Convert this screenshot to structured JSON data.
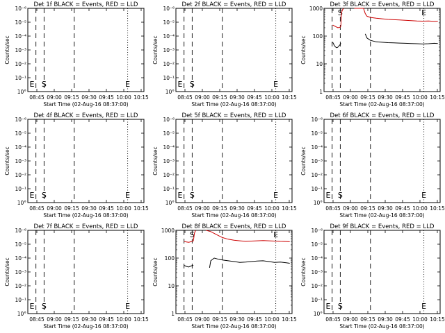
{
  "chart_data": [
    {
      "type": "line",
      "title": "Det 1f BLACK = Events, RED = LLD",
      "xlabel": "Start Time (02-Aug-16 08:37:00)",
      "ylabel": "Counts/sec",
      "xticks": [
        "08:45",
        "09:00",
        "09:15",
        "09:30",
        "09:45",
        "10:00",
        "10:15"
      ],
      "xlim": [
        0,
        100
      ],
      "yscale": "log",
      "yticks": [
        "10°",
        "10⁻¹",
        "10⁻²",
        "10⁻³",
        "10⁻⁴",
        "10⁻⁵",
        "10⁻⁶"
      ],
      "markers": {
        "S": "S",
        "E": "E"
      },
      "series": []
    },
    {
      "type": "line",
      "title": "Det 2f BLACK = Events, RED = LLD",
      "xlabel": "Start Time (02-Aug-16 08:37:00)",
      "ylabel": "Counts/sec",
      "xticks": [
        "08:45",
        "09:00",
        "09:15",
        "09:30",
        "09:45",
        "10:00",
        "10:15"
      ],
      "xlim": [
        0,
        100
      ],
      "yscale": "log",
      "yticks": [
        "10°",
        "10⁻¹",
        "10⁻²",
        "10⁻³",
        "10⁻⁴",
        "10⁻⁵",
        "10⁻⁶"
      ],
      "markers": {
        "S": "S",
        "E": "E"
      },
      "series": []
    },
    {
      "type": "line",
      "title": "Det 3f BLACK = Events, RED = LLD",
      "xlabel": "Start Time (02-Aug-16 08:37:00)",
      "ylabel": "Counts/sec",
      "xticks": [
        "08:45",
        "09:00",
        "09:15",
        "09:30",
        "09:45",
        "10:00",
        "10:15"
      ],
      "xlim": [
        0,
        100
      ],
      "yscale": "log",
      "yticks": [
        "1",
        "10",
        "100",
        "1000"
      ],
      "markers": {
        "S": "S",
        "E": "E"
      },
      "series": [
        {
          "color": "#000000",
          "x": [
            7.5,
            9,
            10,
            11,
            12,
            13,
            14,
            14.5
          ],
          "y": [
            60,
            45,
            40,
            38,
            40,
            45,
            50,
            55
          ]
        },
        {
          "color": "#cc0000",
          "x": [
            7.5,
            10,
            12,
            14,
            14.5,
            15,
            16,
            17
          ],
          "y": [
            250,
            220,
            200,
            210,
            230,
            700,
            900,
            1000
          ]
        },
        {
          "color": "#000000",
          "x": [
            35.5,
            37,
            40,
            45,
            50,
            55,
            60,
            65,
            70,
            75,
            80,
            85,
            90,
            95,
            98
          ],
          "y": [
            120,
            85,
            70,
            62,
            60,
            58,
            57,
            56,
            55,
            54,
            53,
            52,
            53,
            55,
            54
          ]
        },
        {
          "color": "#cc0000",
          "x": [
            26,
            30,
            34,
            35.5,
            37,
            40,
            45,
            50,
            55,
            60,
            65,
            70,
            75,
            80,
            85,
            90,
            95,
            98
          ],
          "y": [
            1000,
            1000,
            1000,
            650,
            520,
            470,
            440,
            420,
            400,
            390,
            380,
            370,
            360,
            350,
            345,
            350,
            340,
            345
          ]
        }
      ]
    },
    {
      "type": "line",
      "title": "Det 4f BLACK = Events, RED = LLD",
      "xlabel": "Start Time (02-Aug-16 08:37:00)",
      "ylabel": "Counts/sec",
      "xticks": [
        "08:45",
        "09:00",
        "09:15",
        "09:30",
        "09:45",
        "10:00",
        "10:15"
      ],
      "xlim": [
        0,
        100
      ],
      "yscale": "log",
      "yticks": [
        "10°",
        "10⁻¹",
        "10⁻²",
        "10⁻³",
        "10⁻⁴",
        "10⁻⁵",
        "10⁻⁶"
      ],
      "markers": {
        "S": "S",
        "E": "E"
      },
      "series": []
    },
    {
      "type": "line",
      "title": "Det 5f BLACK = Events, RED = LLD",
      "xlabel": "Start Time (02-Aug-16 08:37:00)",
      "ylabel": "Counts/sec",
      "xticks": [
        "08:45",
        "09:00",
        "09:15",
        "09:30",
        "09:45",
        "10:00",
        "10:15"
      ],
      "xlim": [
        0,
        100
      ],
      "yscale": "log",
      "yticks": [
        "10°",
        "10⁻¹",
        "10⁻²",
        "10⁻³",
        "10⁻⁴",
        "10⁻⁵",
        "10⁻⁶"
      ],
      "markers": {
        "S": "S",
        "E": "E"
      },
      "series": []
    },
    {
      "type": "line",
      "title": "Det 6f BLACK = Events, RED = LLD",
      "xlabel": "Start Time (02-Aug-16 08:37:00)",
      "ylabel": "Counts/sec",
      "xticks": [
        "08:45",
        "09:00",
        "09:15",
        "09:30",
        "09:45",
        "10:00",
        "10:15"
      ],
      "xlim": [
        0,
        100
      ],
      "yscale": "log",
      "yticks": [
        "10°",
        "10⁻¹",
        "10⁻²",
        "10⁻³",
        "10⁻⁴",
        "10⁻⁵",
        "10⁻⁶"
      ],
      "markers": {
        "S": "S",
        "E": "E"
      },
      "series": []
    },
    {
      "type": "line",
      "title": "Det 7f BLACK = Events, RED = LLD",
      "xlabel": "Start Time (02-Aug-16 08:37:00)",
      "ylabel": "Counts/sec",
      "xticks": [
        "08:45",
        "09:00",
        "09:15",
        "09:30",
        "09:45",
        "10:00",
        "10:15"
      ],
      "xlim": [
        0,
        100
      ],
      "yscale": "log",
      "yticks": [
        "10°",
        "10⁻¹",
        "10⁻²",
        "10⁻³",
        "10⁻⁴",
        "10⁻⁵",
        "10⁻⁶"
      ],
      "markers": {
        "S": "S",
        "E": "E"
      },
      "series": []
    },
    {
      "type": "line",
      "title": "Det 8f BLACK = Events, RED = LLD",
      "xlabel": "Start Time (02-Aug-16 08:37:00)",
      "ylabel": "Counts/sec",
      "xticks": [
        "08:45",
        "09:00",
        "09:15",
        "09:30",
        "09:45",
        "10:00",
        "10:15"
      ],
      "xlim": [
        0,
        100
      ],
      "yscale": "log",
      "yticks": [
        "1",
        "10",
        "100",
        "1000"
      ],
      "markers": {
        "S": "S",
        "E": "E"
      },
      "series": [
        {
          "color": "#000000",
          "x": [
            7,
            9,
            11,
            13,
            15
          ],
          "y": [
            55,
            50,
            48,
            52,
            55
          ]
        },
        {
          "color": "#cc0000",
          "x": [
            7,
            9,
            11,
            13,
            15,
            16,
            17
          ],
          "y": [
            400,
            380,
            370,
            390,
            420,
            800,
            1000
          ]
        },
        {
          "color": "#000000",
          "x": [
            29,
            30,
            33,
            37,
            40,
            45,
            50,
            55,
            60,
            65,
            70,
            75,
            80,
            85,
            90,
            95,
            98
          ],
          "y": [
            45,
            80,
            100,
            90,
            85,
            80,
            75,
            70,
            72,
            75,
            78,
            80,
            75,
            70,
            72,
            68,
            65
          ]
        },
        {
          "color": "#cc0000",
          "x": [
            26,
            30,
            35,
            40,
            45,
            50,
            55,
            60,
            65,
            70,
            75,
            80,
            85,
            90,
            95,
            98
          ],
          "y": [
            1000,
            900,
            700,
            550,
            480,
            440,
            420,
            400,
            410,
            420,
            430,
            420,
            410,
            400,
            395,
            390
          ]
        }
      ]
    },
    {
      "type": "line",
      "title": "Det 9f BLACK = Events, RED = LLD",
      "xlabel": "Start Time (02-Aug-16 08:37:00)",
      "ylabel": "Counts/sec",
      "xticks": [
        "08:45",
        "09:00",
        "09:15",
        "09:30",
        "09:45",
        "10:00",
        "10:15"
      ],
      "xlim": [
        0,
        100
      ],
      "yscale": "log",
      "yticks": [
        "10°",
        "10⁻¹",
        "10⁻²",
        "10⁻³",
        "10⁻⁴",
        "10⁻⁵",
        "10⁻⁶"
      ],
      "markers": {
        "S": "S",
        "E": "E"
      },
      "series": []
    }
  ]
}
